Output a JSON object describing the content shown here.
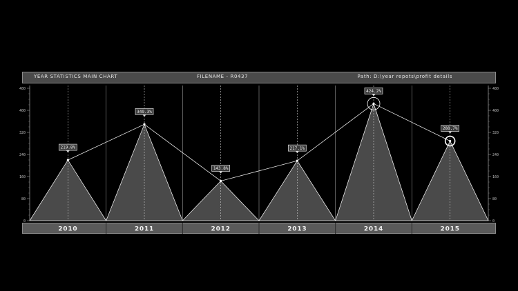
{
  "header": {
    "title": "YEAR STATISTICS MAIN CHART",
    "filename": "FILENAME - R0437",
    "path": "Path: D:\\year repots\\profit details"
  },
  "chart_data": {
    "type": "area",
    "categories": [
      "2010",
      "2011",
      "2012",
      "2013",
      "2014",
      "2015"
    ],
    "values": [
      219.8,
      349.3,
      143.8,
      217.1,
      424.2,
      288.7
    ],
    "value_labels": [
      "219.8%",
      "349.3%",
      "143.8%",
      "217.1%",
      "424.2%",
      "288.7%"
    ],
    "y_ticks": [
      "0",
      "80",
      "160",
      "240",
      "320",
      "400",
      "480"
    ],
    "ylim": [
      0,
      480
    ],
    "grid": true,
    "highlighted_points": [
      "2014",
      "2015"
    ],
    "colors": {
      "background": "#000000",
      "fill": "#4a4a4a",
      "line": "#e8e8e8",
      "grid": "#9a9a9a"
    }
  }
}
